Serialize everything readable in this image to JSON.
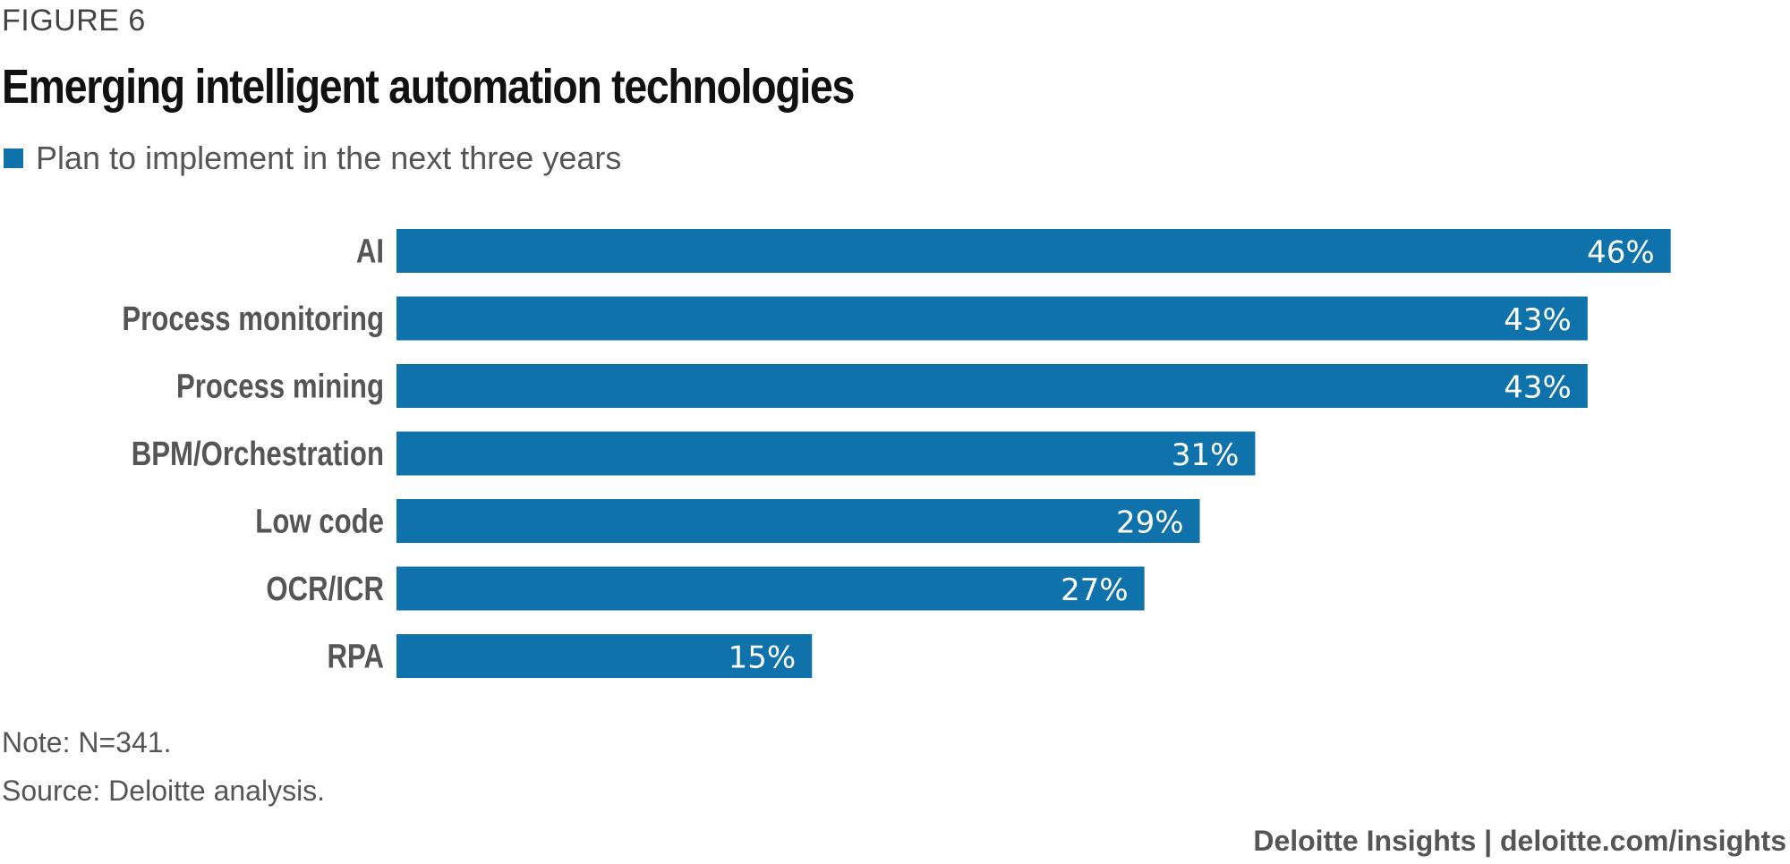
{
  "header": {
    "figure_label": "FIGURE 6",
    "title": "Emerging intelligent automation technologies"
  },
  "legend": {
    "label": "Plan to implement in the next three years"
  },
  "colors": {
    "bar": "#0f72aa"
  },
  "chart_data": {
    "type": "bar",
    "orientation": "horizontal",
    "categories": [
      "AI",
      "Process monitoring",
      "Process mining",
      "BPM/Orchestration",
      "Low code",
      "OCR/ICR",
      "RPA"
    ],
    "series": [
      {
        "name": "Plan to implement in the next three years",
        "values": [
          46,
          43,
          43,
          31,
          29,
          27,
          15
        ]
      }
    ],
    "value_labels": [
      "46%",
      "43%",
      "43%",
      "31%",
      "29%",
      "27%",
      "15%"
    ],
    "unit": "%",
    "xlim": [
      0,
      50
    ],
    "grid": false,
    "legend_position": "top-left"
  },
  "notes": {
    "note": "Note: N=341.",
    "source": "Source: Deloitte analysis."
  },
  "footer": {
    "credit": "Deloitte Insights | deloitte.com/insights"
  }
}
